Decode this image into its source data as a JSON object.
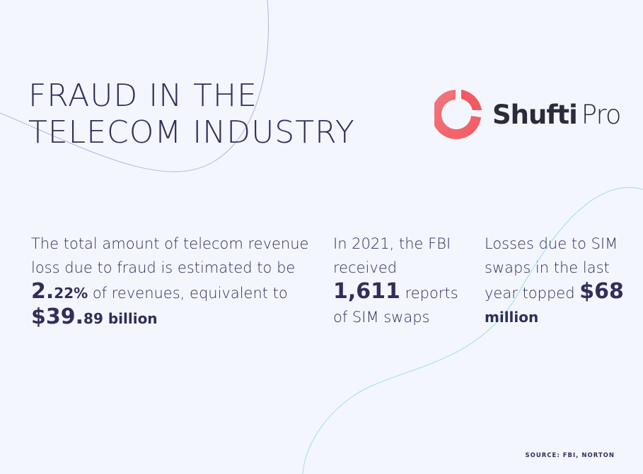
{
  "title": {
    "line1": "FRAUD IN THE",
    "line2": "TELECOM INDUSTRY"
  },
  "logo": {
    "bold": "Shufti",
    "light": "Pro",
    "icon": "shufti-pro-ring-icon",
    "color_start": "#f25a63",
    "color_end": "#f0787f"
  },
  "stats": [
    {
      "text1": "The total amount of telecom revenue loss due to fraud is estimated to be ",
      "big1": "2.",
      "mid1": "22%",
      "text2": " of revenues, equivalent to ",
      "big2": "$39.",
      "mid2": "89 billion"
    },
    {
      "text1": "In 2021, the FBI received ",
      "big": "1,611",
      "text2": " reports of SIM swaps"
    },
    {
      "text1": "Losses due to SIM swaps in the last year topped ",
      "big": "$68",
      "mid": " million"
    }
  ],
  "source": "SOURCE: FBI, NORTON",
  "colors": {
    "background": "#f3f6fd",
    "text": "#2e2f5a",
    "line_purple": "#b9b3dc",
    "line_teal": "#9ee0d8"
  }
}
